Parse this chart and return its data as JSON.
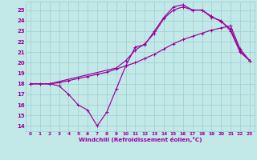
{
  "xlabel": "Windchill (Refroidissement éolien,°C)",
  "xlim": [
    -0.5,
    23.5
  ],
  "ylim": [
    13.5,
    25.8
  ],
  "xticks": [
    0,
    1,
    2,
    3,
    4,
    5,
    6,
    7,
    8,
    9,
    10,
    11,
    12,
    13,
    14,
    15,
    16,
    17,
    18,
    19,
    20,
    21,
    22,
    23
  ],
  "yticks": [
    14,
    15,
    16,
    17,
    18,
    19,
    20,
    21,
    22,
    23,
    24,
    25
  ],
  "bg_color": "#c2e8e8",
  "grid_color": "#9ecfcf",
  "line_color": "#990099",
  "line1_x": [
    0,
    1,
    2,
    3,
    4,
    5,
    6,
    7,
    8,
    9,
    10,
    11,
    12,
    13,
    14,
    15,
    16,
    17,
    18,
    19,
    20,
    21,
    22,
    23
  ],
  "line1_y": [
    18,
    18,
    18,
    17.8,
    17.0,
    16.0,
    15.5,
    14.0,
    15.3,
    17.5,
    19.7,
    21.5,
    21.7,
    23.0,
    24.3,
    25.3,
    25.5,
    25.0,
    25.0,
    24.3,
    24.0,
    23.0,
    21.0,
    20.2
  ],
  "line2_x": [
    0,
    2,
    3,
    4,
    5,
    6,
    7,
    8,
    9,
    10,
    11,
    12,
    13,
    14,
    15,
    16,
    17,
    18,
    19,
    20,
    21,
    22,
    23
  ],
  "line2_y": [
    18,
    18.0,
    18.1,
    18.3,
    18.5,
    18.7,
    18.9,
    19.1,
    19.4,
    19.7,
    20.0,
    20.4,
    20.8,
    21.3,
    21.8,
    22.2,
    22.5,
    22.8,
    23.1,
    23.3,
    23.5,
    21.3,
    20.2
  ],
  "line3_x": [
    0,
    2,
    9,
    10,
    11,
    12,
    13,
    14,
    15,
    16,
    17,
    18,
    19,
    20,
    21,
    22,
    23
  ],
  "line3_y": [
    18,
    18,
    19.5,
    20.2,
    21.2,
    21.8,
    22.8,
    24.2,
    25.0,
    25.3,
    25.0,
    25.0,
    24.4,
    23.9,
    23.2,
    21.1,
    20.2
  ]
}
